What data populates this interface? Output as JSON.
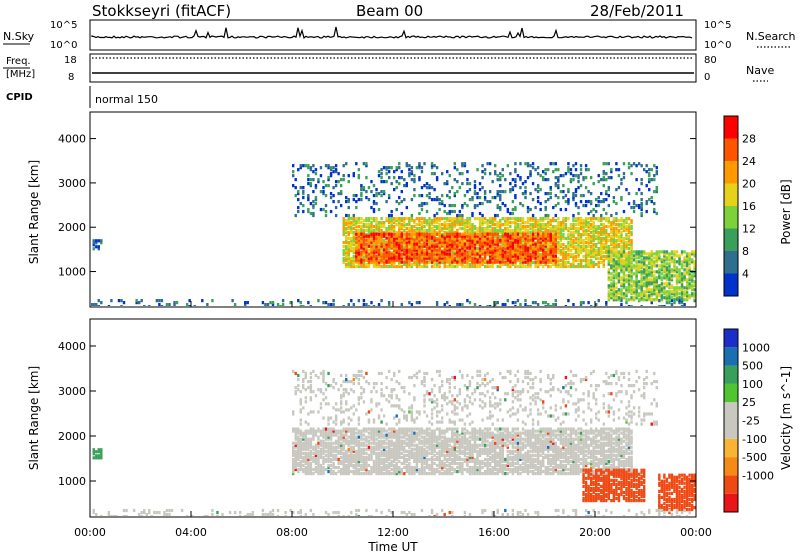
{
  "header": {
    "station": "Stokkseyri (fitACF)",
    "beam": "Beam 00",
    "date": "28/Feb/2011"
  },
  "noise_panel": {
    "left_label": "N.Sky",
    "left_ticks": [
      "10^5",
      "10^0"
    ],
    "right_ticks": [
      "10^5",
      "10^0"
    ],
    "right_label": "N.Search"
  },
  "freq_panel": {
    "left_label_line1": "Freq.",
    "left_label_line2": "[MHz]",
    "left_ticks": [
      "18",
      "8"
    ],
    "right_ticks": [
      "80",
      "0"
    ],
    "right_label": "Nave"
  },
  "cpid_panel": {
    "label": "CPID",
    "text": "normal 150"
  },
  "x_axis": {
    "title": "Time UT",
    "ticks": [
      "00:00",
      "04:00",
      "08:00",
      "12:00",
      "16:00",
      "20:00",
      "00:00"
    ]
  },
  "colors": {
    "power_scale": [
      "#0033cc",
      "#2e6e8e",
      "#3a9f5a",
      "#7fd13b",
      "#e6d21a",
      "#ff9900",
      "#ff5500",
      "#ff0000"
    ],
    "velocity_scale": [
      "#e8151b",
      "#f04a14",
      "#f58a16",
      "#f9b434",
      "#c8c8c0",
      "#c8c8c0",
      "#52c430",
      "#3a9f5a",
      "#1a6fb0",
      "#1b2fc8"
    ],
    "ground_scatter": "#c8c8c0"
  },
  "chart_data": [
    {
      "type": "heatmap",
      "quantity": "power",
      "ylabel": "Slant Range [km]",
      "xlabel": "Time UT",
      "x_ticks": [
        "00:00",
        "04:00",
        "08:00",
        "12:00",
        "16:00",
        "20:00",
        "00:00"
      ],
      "y_ticks": [
        1000,
        2000,
        3000,
        4000
      ],
      "ylim": [
        200,
        4600
      ],
      "xlim_hours": [
        0,
        24
      ],
      "colorbar": {
        "label": "Power [dB]",
        "ticks": [
          "4",
          "8",
          "12",
          "16",
          "20",
          "24",
          "28"
        ],
        "range": [
          0,
          32
        ]
      },
      "regions": [
        {
          "name": "main band",
          "t": [
            10.0,
            21.5
          ],
          "range_km": [
            1150,
            2250
          ],
          "level_db": 18
        },
        {
          "name": "core",
          "t": [
            10.5,
            18.5
          ],
          "range_km": [
            1250,
            1900
          ],
          "level_db": 26
        },
        {
          "name": "upper sparse",
          "t": [
            8.0,
            22.5
          ],
          "range_km": [
            2300,
            3500
          ],
          "level_db": 6
        },
        {
          "name": "early echo",
          "t": [
            0.1,
            0.5
          ],
          "range_km": [
            1550,
            1750
          ],
          "level_db": 6
        },
        {
          "name": "near range",
          "t": [
            0,
            24
          ],
          "range_km": [
            200,
            400
          ],
          "level_db": 6
        },
        {
          "name": "late echo",
          "t": [
            20.5,
            24
          ],
          "range_km": [
            400,
            1500
          ],
          "level_db": 14
        }
      ]
    },
    {
      "type": "heatmap",
      "quantity": "velocity",
      "ylabel": "Slant Range [km]",
      "xlabel": "Time UT",
      "x_ticks": [
        "00:00",
        "04:00",
        "08:00",
        "12:00",
        "16:00",
        "20:00",
        "00:00"
      ],
      "y_ticks": [
        1000,
        2000,
        3000,
        4000
      ],
      "ylim": [
        200,
        4600
      ],
      "xlim_hours": [
        0,
        24
      ],
      "colorbar": {
        "label": "Velocity [m s^-1]",
        "ticks": [
          "1000",
          "500",
          "100",
          "25",
          "-25",
          "-100",
          "-500",
          "-1000"
        ]
      },
      "regions": [
        {
          "name": "ground scatter band",
          "t": [
            8.0,
            21.5
          ],
          "range_km": [
            1200,
            2200
          ],
          "velocity": 0
        },
        {
          "name": "upper sparse",
          "t": [
            8.0,
            22.5
          ],
          "range_km": [
            2300,
            3500
          ],
          "velocity": 0
        },
        {
          "name": "negative patch",
          "t": [
            19.5,
            22.0
          ],
          "range_km": [
            600,
            1300
          ],
          "velocity": -300
        },
        {
          "name": "late echo",
          "t": [
            22.5,
            24
          ],
          "range_km": [
            400,
            1200
          ],
          "velocity": -300
        },
        {
          "name": "early echo",
          "t": [
            0.1,
            0.5
          ],
          "range_km": [
            1550,
            1750
          ],
          "velocity": 150
        },
        {
          "name": "near range",
          "t": [
            0,
            24
          ],
          "range_km": [
            200,
            400
          ],
          "velocity": 0
        }
      ]
    }
  ]
}
